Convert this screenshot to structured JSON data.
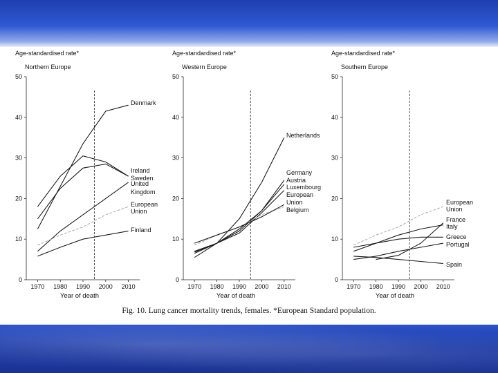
{
  "caption": "Fig. 10.  Lung cancer mortality trends, females. *European Standard population.",
  "colors": {
    "band_top": "#2f58d2",
    "band_bottom": "#1d3aa6"
  },
  "chart_data": [
    {
      "type": "line",
      "ylabel": "Age-standardised rate*",
      "subtitle": "Northern Europe",
      "xlabel": "Year of death",
      "xlim": [
        1965,
        2015
      ],
      "ylim": [
        0,
        50
      ],
      "xticks": [
        1970,
        1980,
        1990,
        2000,
        2010
      ],
      "yticks": [
        0,
        10,
        20,
        30,
        40,
        50
      ],
      "vline": 1995,
      "series": [
        {
          "name": "Denmark",
          "dashed": false,
          "x": [
            1970,
            1990,
            2000,
            2010
          ],
          "y": [
            12.5,
            33.5,
            41.5,
            43
          ]
        },
        {
          "name": "Ireland",
          "dashed": false,
          "x": [
            1970,
            1980,
            1990,
            2000,
            2010
          ],
          "y": [
            18,
            25.5,
            30.5,
            29,
            25.5
          ]
        },
        {
          "name": "Sweden",
          "dashed": false,
          "x": [
            1970,
            1980,
            1990,
            2000,
            2010
          ],
          "y": [
            15,
            22.5,
            27.5,
            28.5,
            25.5
          ]
        },
        {
          "name": "United Kingdom",
          "dashed": false,
          "x": [
            1970,
            1980,
            1990,
            2000,
            2010
          ],
          "y": [
            7,
            12,
            16,
            20,
            24
          ]
        },
        {
          "name": "European Union",
          "dashed": true,
          "x": [
            1970,
            1980,
            1990,
            2000,
            2010
          ],
          "y": [
            8.5,
            11,
            13,
            16,
            18
          ]
        },
        {
          "name": "Finland",
          "dashed": false,
          "x": [
            1970,
            1980,
            1990,
            2000,
            2010
          ],
          "y": [
            5.8,
            8,
            10,
            11,
            12
          ]
        }
      ]
    },
    {
      "type": "line",
      "ylabel": "Age-standardised rate*",
      "subtitle": "Western Europe",
      "xlabel": "Year of death",
      "xlim": [
        1965,
        2015
      ],
      "ylim": [
        0,
        50
      ],
      "xticks": [
        1970,
        1980,
        1990,
        2000,
        2010
      ],
      "yticks": [
        0,
        10,
        20,
        30,
        40,
        50
      ],
      "vline": 1995,
      "series": [
        {
          "name": "Netherlands",
          "dashed": false,
          "x": [
            1970,
            1980,
            1990,
            2000,
            2010
          ],
          "y": [
            5.5,
            9,
            15,
            24,
            35
          ]
        },
        {
          "name": "Germany",
          "dashed": false,
          "x": [
            1970,
            1980,
            1990,
            2000,
            2010
          ],
          "y": [
            7,
            9,
            12,
            17,
            24.5
          ]
        },
        {
          "name": "Austria",
          "dashed": false,
          "x": [
            1970,
            1980,
            1990,
            2000,
            2010
          ],
          "y": [
            6.5,
            9,
            12.5,
            17,
            23.5
          ]
        },
        {
          "name": "Luxembourg",
          "dashed": false,
          "x": [
            1970,
            1980,
            1990,
            2000,
            2010
          ],
          "y": [
            6.8,
            9,
            11.5,
            16.5,
            22
          ]
        },
        {
          "name": "European Union",
          "dashed": true,
          "x": [
            1970,
            1980,
            1990,
            2000,
            2010
          ],
          "y": [
            8.5,
            11,
            13,
            16,
            18
          ]
        },
        {
          "name": "Belgium",
          "dashed": false,
          "x": [
            1970,
            1980,
            1990,
            2000,
            2010
          ],
          "y": [
            9,
            11,
            13,
            15.5,
            18.5
          ]
        }
      ]
    },
    {
      "type": "line",
      "ylabel": "Age-standardised rate*",
      "subtitle": "Southern Europe",
      "xlabel": "Year of death",
      "xlim": [
        1965,
        2015
      ],
      "ylim": [
        0,
        50
      ],
      "xticks": [
        1970,
        1980,
        1990,
        2000,
        2010
      ],
      "yticks": [
        0,
        10,
        20,
        30,
        40,
        50
      ],
      "vline": 1995,
      "series": [
        {
          "name": "European Union",
          "dashed": true,
          "x": [
            1970,
            1980,
            1990,
            2000,
            2010
          ],
          "y": [
            8.5,
            11,
            13,
            16,
            18
          ]
        },
        {
          "name": "France",
          "dashed": false,
          "x": [
            1980,
            1990,
            2000,
            2010
          ],
          "y": [
            5,
            6,
            9,
            14
          ]
        },
        {
          "name": "Italy",
          "dashed": false,
          "x": [
            1970,
            1980,
            1990,
            2000,
            2010
          ],
          "y": [
            7,
            9,
            11,
            12.5,
            13.5
          ]
        },
        {
          "name": "Greece",
          "dashed": false,
          "x": [
            1970,
            1980,
            1990,
            2000,
            2010
          ],
          "y": [
            8,
            9,
            10,
            10.5,
            10.5
          ]
        },
        {
          "name": "Portugal",
          "dashed": false,
          "x": [
            1970,
            1980,
            1990,
            2000,
            2010
          ],
          "y": [
            5,
            5.8,
            7,
            8,
            9
          ]
        },
        {
          "name": "Spain",
          "dashed": false,
          "x": [
            1970,
            1980,
            1990,
            2000,
            2010
          ],
          "y": [
            5.8,
            5.5,
            5,
            4.5,
            4
          ]
        }
      ]
    }
  ]
}
